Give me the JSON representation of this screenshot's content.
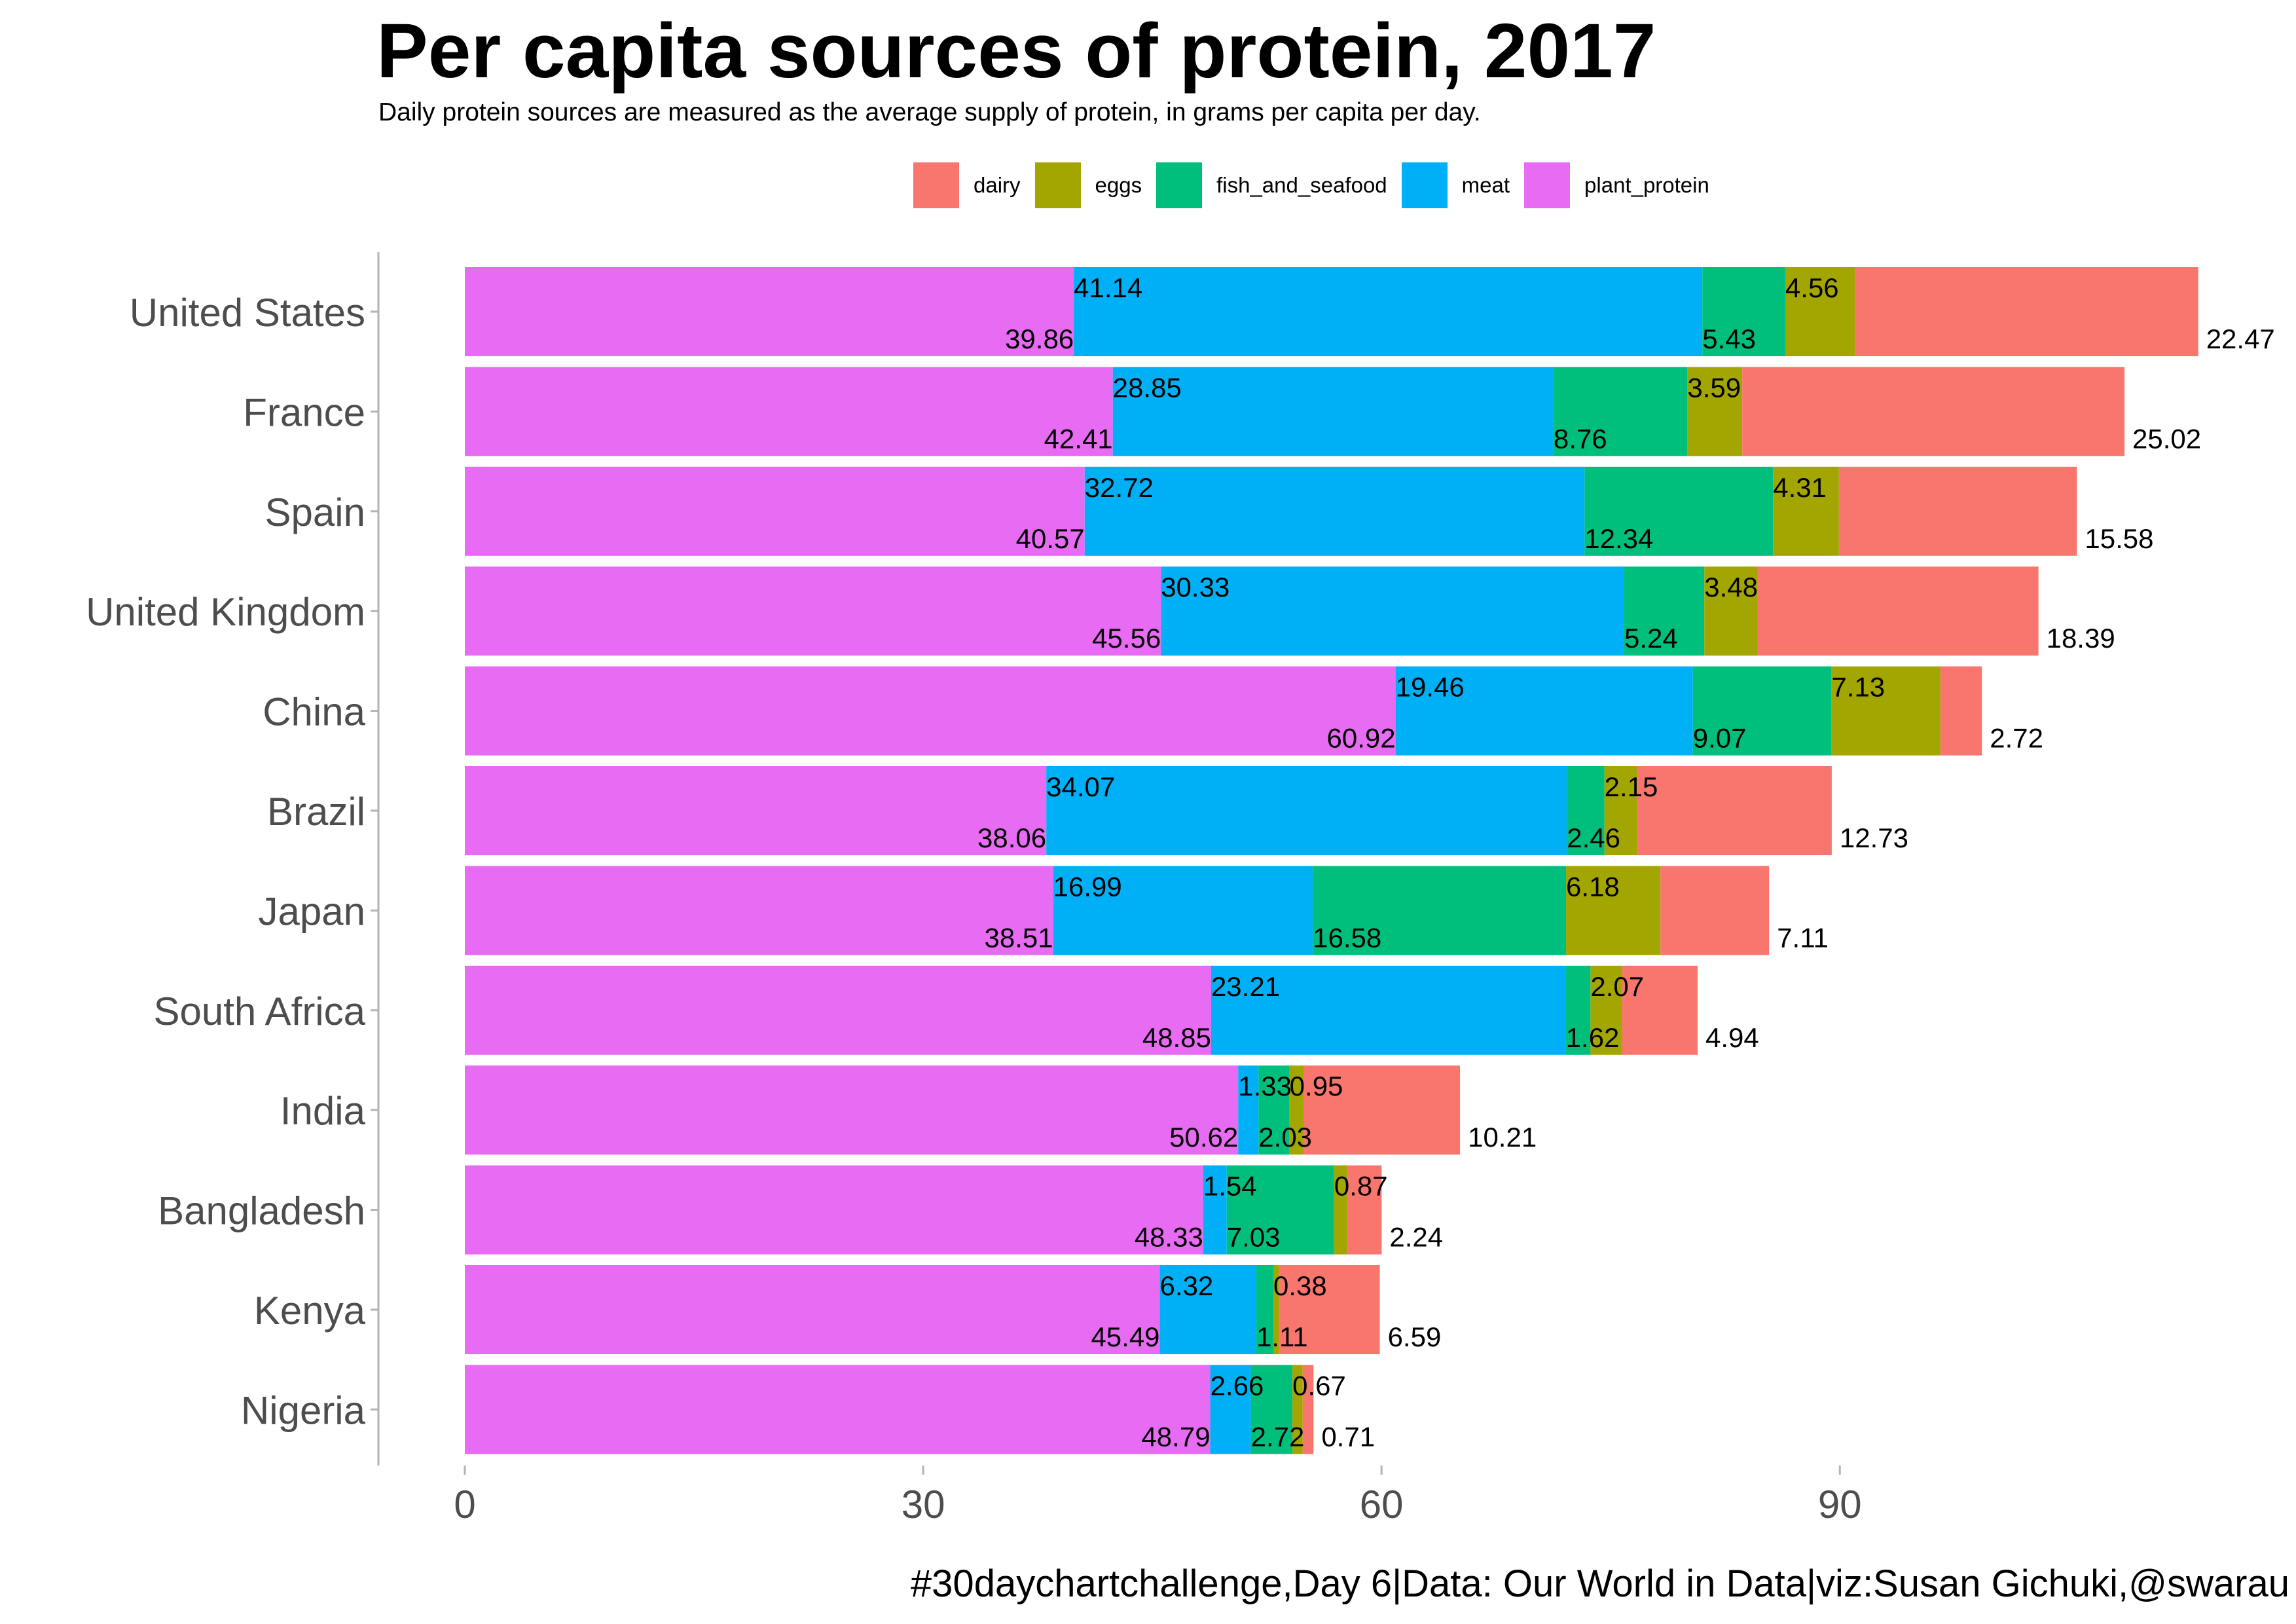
{
  "chart_data": {
    "type": "bar",
    "orientation": "horizontal",
    "stacked": true,
    "title": "Per capita sources of protein, 2017",
    "subtitle": "Daily protein sources are measured as the average supply of protein, in grams per capita per day.",
    "caption": "#30daychartchallenge,Day 6|Data: Our World in Data|viz:Susan Gichuki,@swarau",
    "legend_position": "top",
    "xlim": [
      0,
      114
    ],
    "x_ticks": [
      0,
      30,
      60,
      90
    ],
    "grid": false,
    "categories": [
      "United States",
      "France",
      "Spain",
      "United Kingdom",
      "China",
      "Brazil",
      "Japan",
      "South Africa",
      "India",
      "Bangladesh",
      "Kenya",
      "Nigeria"
    ],
    "stack_order": [
      "plant_protein",
      "meat",
      "fish_and_seafood",
      "eggs",
      "dairy"
    ],
    "series": [
      {
        "name": "dairy",
        "color": "#F8766D",
        "values": [
          22.47,
          25.02,
          15.58,
          18.39,
          2.72,
          12.73,
          7.11,
          4.94,
          10.21,
          2.24,
          6.59,
          0.71
        ]
      },
      {
        "name": "eggs",
        "color": "#A3A500",
        "values": [
          4.56,
          3.59,
          4.31,
          3.48,
          7.13,
          2.15,
          6.18,
          2.07,
          0.95,
          0.87,
          0.38,
          0.67
        ]
      },
      {
        "name": "fish_and_seafood",
        "color": "#00BF7D",
        "values": [
          5.43,
          8.76,
          12.34,
          5.24,
          9.07,
          2.46,
          16.58,
          1.62,
          2.03,
          7.03,
          1.11,
          2.72
        ]
      },
      {
        "name": "meat",
        "color": "#00B0F6",
        "values": [
          41.14,
          28.85,
          32.72,
          30.33,
          19.46,
          34.07,
          16.99,
          23.21,
          1.33,
          1.54,
          6.32,
          2.66
        ]
      },
      {
        "name": "plant_protein",
        "color": "#E76BF3",
        "values": [
          39.86,
          42.41,
          40.57,
          45.56,
          60.92,
          38.06,
          38.51,
          48.85,
          50.62,
          48.33,
          45.49,
          48.79
        ]
      }
    ]
  }
}
